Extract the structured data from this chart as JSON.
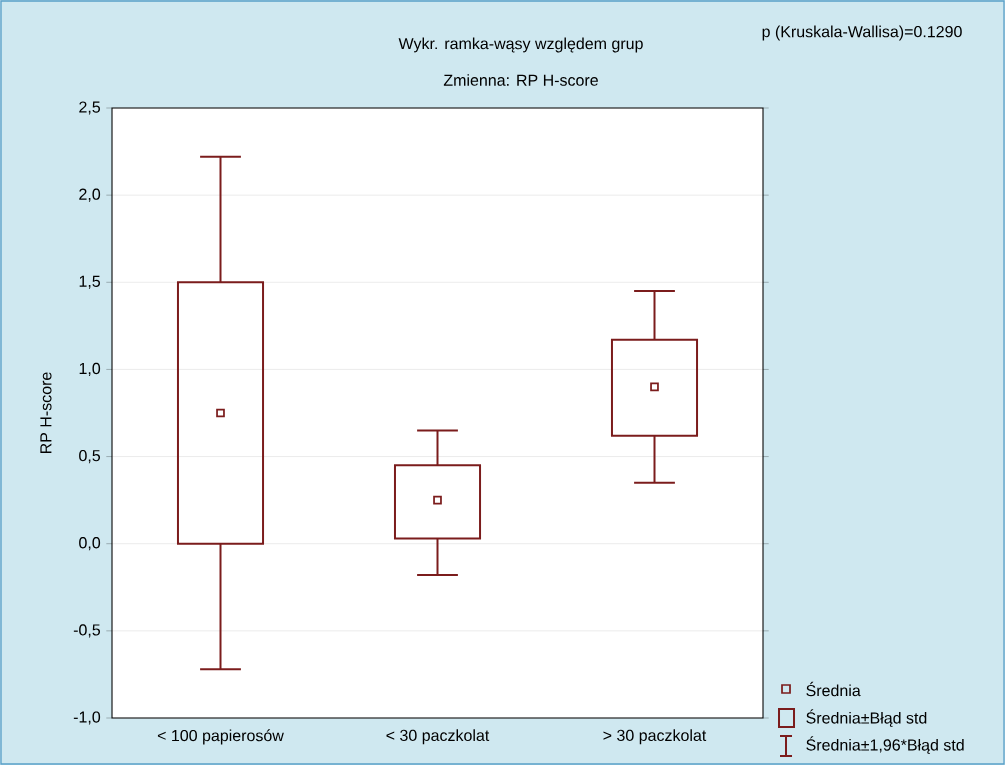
{
  "chart_data": {
    "type": "box",
    "title": "Wykr. ramka-wąsy względem grup",
    "subtitle": "Zmienna:  RP H-score",
    "ylabel": "RP H-score",
    "categories": [
      "< 100 papierosów",
      "< 30 paczkolat",
      "> 30 paczkolat"
    ],
    "color": "#7b1c1c",
    "boxes": [
      {
        "low": -0.72,
        "q1": 0.0,
        "median": 0.75,
        "q3": 1.5,
        "high": 2.22
      },
      {
        "low": -0.18,
        "q1": 0.03,
        "median": 0.25,
        "q3": 0.45,
        "high": 0.65
      },
      {
        "low": 0.35,
        "q1": 0.62,
        "median": 0.9,
        "q3": 1.17,
        "high": 1.45
      }
    ],
    "ylim": [
      -1.0,
      2.5
    ],
    "yticks": [
      {
        "value": -1.0,
        "label": "-1,0"
      },
      {
        "value": -0.5,
        "label": "-0,5"
      },
      {
        "value": 0.0,
        "label": "0,0"
      },
      {
        "value": 0.5,
        "label": "0,5"
      },
      {
        "value": 1.0,
        "label": "1,0"
      },
      {
        "value": 1.5,
        "label": "1,5"
      },
      {
        "value": 2.0,
        "label": "2,0"
      },
      {
        "value": 2.5,
        "label": "2,5"
      }
    ],
    "grid": "y",
    "annotations": [
      "p (Kruskala-Wallisa)=0.1290",
      "Średnia",
      "Średnia±Błąd std",
      "Średnia±1,96*Błąd std"
    ]
  }
}
